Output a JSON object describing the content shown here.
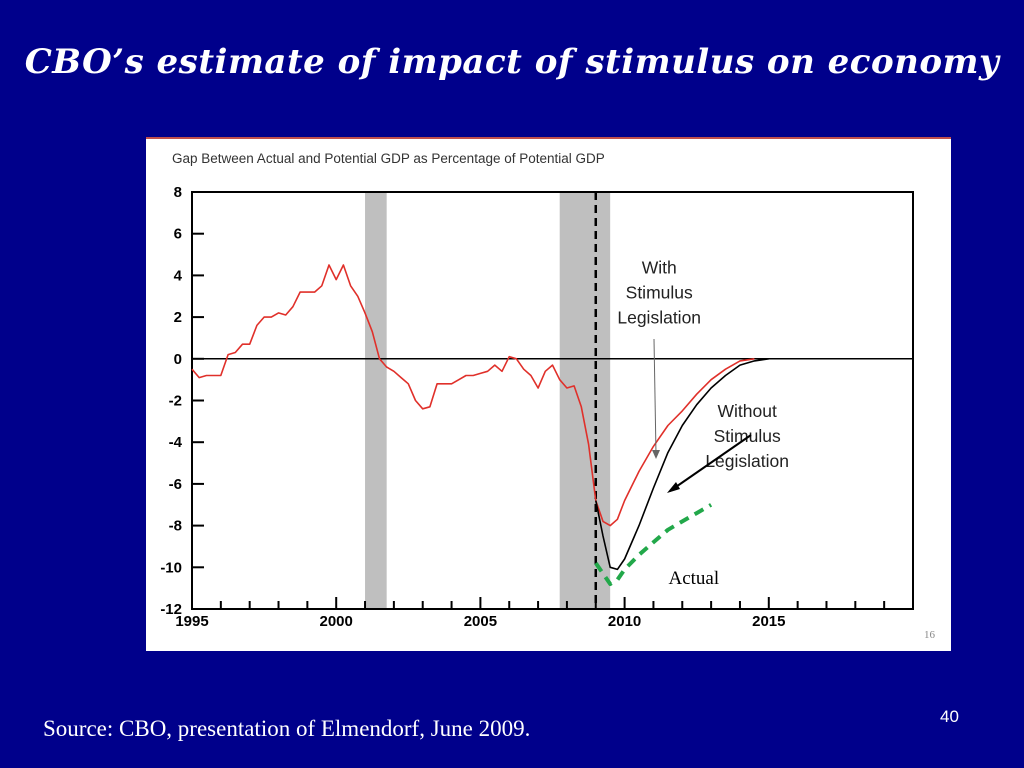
{
  "slide": {
    "title": "CBO’s estimate of impact of stimulus on economy",
    "source": "Source: CBO, presentation of Elmendorf, June 2009.",
    "slide_number": "40"
  },
  "colors": {
    "background": "#00008b",
    "with_stimulus": "#e0302a",
    "without_stimulus": "#000000",
    "actual": "#22a84a",
    "recession": "#bfbfbf"
  },
  "chart_data": {
    "type": "line",
    "title": "Gap Between Actual and Potential GDP as Percentage of Potential GDP",
    "xlim": [
      1995,
      2020
    ],
    "ylim": [
      -12,
      8
    ],
    "x_ticks": [
      1995,
      2000,
      2005,
      2010,
      2015
    ],
    "y_ticks": [
      8,
      6,
      4,
      2,
      0,
      -2,
      -4,
      -6,
      -8,
      -10,
      -12
    ],
    "grid": false,
    "recessions": [
      [
        2001.0,
        2001.75
      ],
      [
        2007.75,
        2009.5
      ]
    ],
    "vertical_marker": 2009.0,
    "page_number": "16",
    "series": [
      {
        "name": "With Stimulus Legislation",
        "color": "#e0302a",
        "x": [
          1995.0,
          1995.25,
          1995.5,
          1995.75,
          1996.0,
          1996.25,
          1996.5,
          1996.75,
          1997.0,
          1997.25,
          1997.5,
          1997.75,
          1998.0,
          1998.25,
          1998.5,
          1998.75,
          1999.0,
          1999.25,
          1999.5,
          1999.75,
          2000.0,
          2000.25,
          2000.5,
          2000.75,
          2001.0,
          2001.25,
          2001.5,
          2001.75,
          2002.0,
          2002.25,
          2002.5,
          2002.75,
          2003.0,
          2003.25,
          2003.5,
          2003.75,
          2004.0,
          2004.25,
          2004.5,
          2004.75,
          2005.0,
          2005.25,
          2005.5,
          2005.75,
          2006.0,
          2006.25,
          2006.5,
          2006.75,
          2007.0,
          2007.25,
          2007.5,
          2007.75,
          2008.0,
          2008.25,
          2008.5,
          2008.75,
          2009.0,
          2009.25,
          2009.5,
          2009.75,
          2010.0,
          2010.5,
          2011.0,
          2011.5,
          2012.0,
          2012.5,
          2013.0,
          2013.5,
          2014.0,
          2014.5
        ],
        "values": [
          -0.5,
          -0.9,
          -0.8,
          -0.8,
          -0.8,
          0.2,
          0.3,
          0.7,
          0.7,
          1.6,
          2.0,
          2.0,
          2.2,
          2.1,
          2.5,
          3.2,
          3.2,
          3.2,
          3.5,
          4.5,
          3.8,
          4.5,
          3.5,
          3.0,
          2.2,
          1.3,
          0.0,
          -0.4,
          -0.6,
          -0.9,
          -1.2,
          -2.0,
          -2.4,
          -2.3,
          -1.2,
          -1.2,
          -1.2,
          -1.0,
          -0.8,
          -0.8,
          -0.7,
          -0.6,
          -0.3,
          -0.6,
          0.1,
          0.0,
          -0.5,
          -0.8,
          -1.4,
          -0.6,
          -0.3,
          -1.0,
          -1.4,
          -1.3,
          -2.3,
          -4.1,
          -6.8,
          -7.8,
          -8.0,
          -7.7,
          -6.8,
          -5.4,
          -4.2,
          -3.2,
          -2.5,
          -1.7,
          -1.0,
          -0.5,
          -0.1,
          0.0
        ]
      },
      {
        "name": "Without Stimulus Legislation",
        "color": "#000000",
        "x": [
          2009.0,
          2009.25,
          2009.5,
          2009.75,
          2010.0,
          2010.5,
          2011.0,
          2011.5,
          2012.0,
          2012.5,
          2013.0,
          2013.5,
          2014.0,
          2014.5,
          2015.0
        ],
        "values": [
          -6.8,
          -8.5,
          -10.0,
          -10.1,
          -9.6,
          -8.0,
          -6.2,
          -4.5,
          -3.2,
          -2.2,
          -1.4,
          -0.8,
          -0.3,
          -0.1,
          0.0
        ]
      },
      {
        "name": "Actual",
        "color": "#22a84a",
        "x": [
          2009.0,
          2009.5,
          2009.75,
          2010.0,
          2010.5,
          2011.0,
          2011.5,
          2012.0,
          2012.5,
          2013.0
        ],
        "values": [
          -9.8,
          -10.8,
          -10.6,
          -10.1,
          -9.4,
          -8.8,
          -8.2,
          -7.8,
          -7.4,
          -7.0
        ]
      }
    ],
    "annotations": [
      {
        "text": "With",
        "x": 2011.2,
        "y": 4.1
      },
      {
        "text": "Stimulus",
        "x": 2011.2,
        "y": 2.9
      },
      {
        "text": "Legislation",
        "x": 2011.2,
        "y": 1.7
      },
      {
        "text": "Without",
        "x": 2014.25,
        "y": -2.8
      },
      {
        "text": "Stimulus",
        "x": 2014.25,
        "y": -4.0
      },
      {
        "text": "Legislation",
        "x": 2014.25,
        "y": -5.2
      },
      {
        "text": "Actual",
        "x": 2012.4,
        "y": -10.8
      }
    ]
  }
}
